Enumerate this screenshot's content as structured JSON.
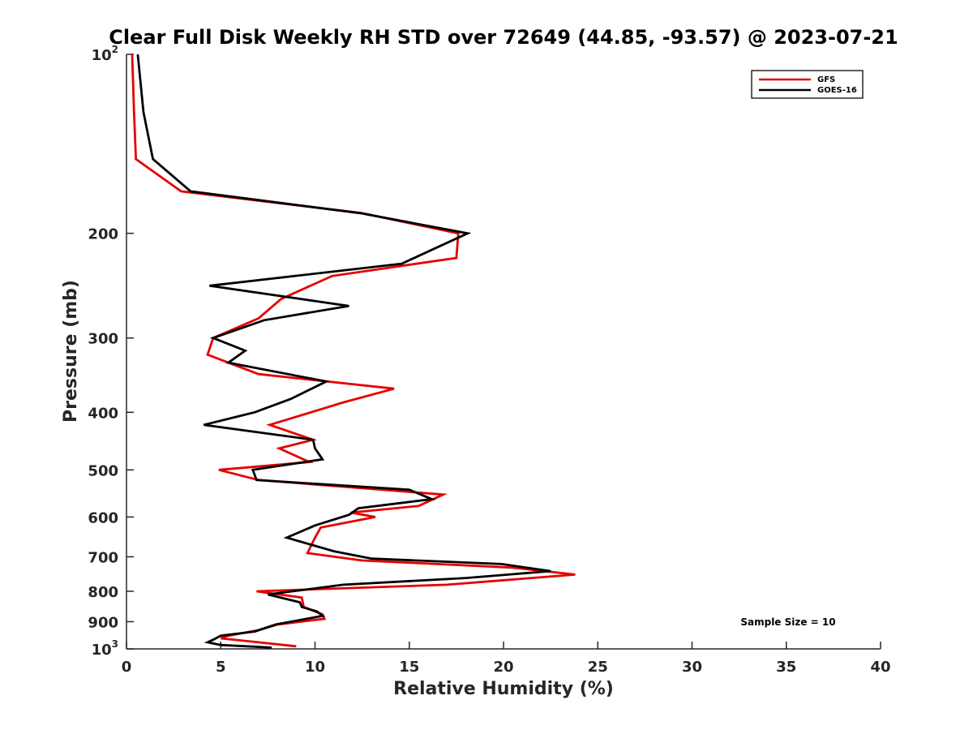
{
  "chart_data": {
    "type": "line",
    "title": "Clear Full Disk Weekly RH STD over 72649 (44.85, -93.57) @ 2023-07-21",
    "xlabel": "Relative Humidity (%)",
    "ylabel": "Pressure (mb)",
    "xlim": [
      0,
      40
    ],
    "ylim": [
      100,
      1000
    ],
    "y_scale": "log",
    "y_reversed": true,
    "x_ticks": [
      "0",
      "5",
      "10",
      "15",
      "20",
      "25",
      "30",
      "35",
      "40"
    ],
    "x_tick_values": [
      0,
      5,
      10,
      15,
      20,
      25,
      30,
      35,
      40
    ],
    "y_ticks": [
      {
        "value": 100,
        "base": "10",
        "exp": "2"
      },
      {
        "value": 200,
        "label": "200"
      },
      {
        "value": 300,
        "label": "300"
      },
      {
        "value": 400,
        "label": "400"
      },
      {
        "value": 500,
        "label": "500"
      },
      {
        "value": 600,
        "label": "600"
      },
      {
        "value": 700,
        "label": "700"
      },
      {
        "value": 800,
        "label": "800"
      },
      {
        "value": 900,
        "label": "900"
      },
      {
        "value": 1000,
        "base": "10",
        "exp": "3"
      }
    ],
    "legend_position": "top-right",
    "grid": false,
    "annotation": "Sample Size = 10",
    "series": [
      {
        "name": "GFS",
        "color": "#e60000",
        "points": [
          [
            0.3,
            100
          ],
          [
            0.4,
            125
          ],
          [
            0.5,
            150
          ],
          [
            2.9,
            170
          ],
          [
            12.5,
            185
          ],
          [
            17.6,
            200
          ],
          [
            17.5,
            220
          ],
          [
            10.9,
            236
          ],
          [
            8.2,
            258
          ],
          [
            7.0,
            278
          ],
          [
            4.6,
            300
          ],
          [
            4.3,
            320
          ],
          [
            7.0,
            345
          ],
          [
            14.2,
            365
          ],
          [
            11.5,
            385
          ],
          [
            7.6,
            420
          ],
          [
            9.9,
            445
          ],
          [
            8.1,
            460
          ],
          [
            9.7,
            485
          ],
          [
            4.9,
            500
          ],
          [
            7.0,
            520
          ],
          [
            16.8,
            550
          ],
          [
            15.5,
            575
          ],
          [
            11.9,
            590
          ],
          [
            13.2,
            600
          ],
          [
            10.3,
            625
          ],
          [
            10.0,
            650
          ],
          [
            9.6,
            690
          ],
          [
            12.5,
            710
          ],
          [
            20.5,
            730
          ],
          [
            23.8,
            750
          ],
          [
            17.0,
            780
          ],
          [
            6.9,
            800
          ],
          [
            9.3,
            820
          ],
          [
            9.4,
            850
          ],
          [
            10.4,
            875
          ],
          [
            10.5,
            890
          ],
          [
            8.0,
            910
          ],
          [
            7.0,
            930
          ],
          [
            5.4,
            950
          ],
          [
            5.0,
            960
          ],
          [
            7.0,
            975
          ],
          [
            9.0,
            990
          ]
        ]
      },
      {
        "name": "GOES-16",
        "color": "#000000",
        "points": [
          [
            0.6,
            100
          ],
          [
            0.9,
            125
          ],
          [
            1.4,
            150
          ],
          [
            3.4,
            170
          ],
          [
            12.4,
            185
          ],
          [
            18.1,
            200
          ],
          [
            14.6,
            225
          ],
          [
            4.4,
            245
          ],
          [
            11.8,
            265
          ],
          [
            7.3,
            280
          ],
          [
            4.6,
            300
          ],
          [
            6.3,
            315
          ],
          [
            5.4,
            330
          ],
          [
            10.6,
            355
          ],
          [
            8.7,
            380
          ],
          [
            6.8,
            400
          ],
          [
            4.1,
            420
          ],
          [
            9.9,
            445
          ],
          [
            10.0,
            460
          ],
          [
            10.4,
            480
          ],
          [
            6.7,
            500
          ],
          [
            6.9,
            520
          ],
          [
            15.0,
            540
          ],
          [
            16.2,
            560
          ],
          [
            12.3,
            580
          ],
          [
            11.8,
            595
          ],
          [
            10.0,
            620
          ],
          [
            8.5,
            650
          ],
          [
            11.0,
            685
          ],
          [
            13.0,
            705
          ],
          [
            19.9,
            720
          ],
          [
            22.5,
            740
          ],
          [
            18.0,
            760
          ],
          [
            11.5,
            780
          ],
          [
            7.5,
            810
          ],
          [
            9.2,
            835
          ],
          [
            9.3,
            850
          ],
          [
            10.1,
            865
          ],
          [
            10.4,
            880
          ],
          [
            7.9,
            910
          ],
          [
            6.8,
            935
          ],
          [
            5.0,
            950
          ],
          [
            4.6,
            965
          ],
          [
            4.3,
            975
          ],
          [
            5.0,
            985
          ],
          [
            7.7,
            995
          ]
        ]
      }
    ]
  }
}
